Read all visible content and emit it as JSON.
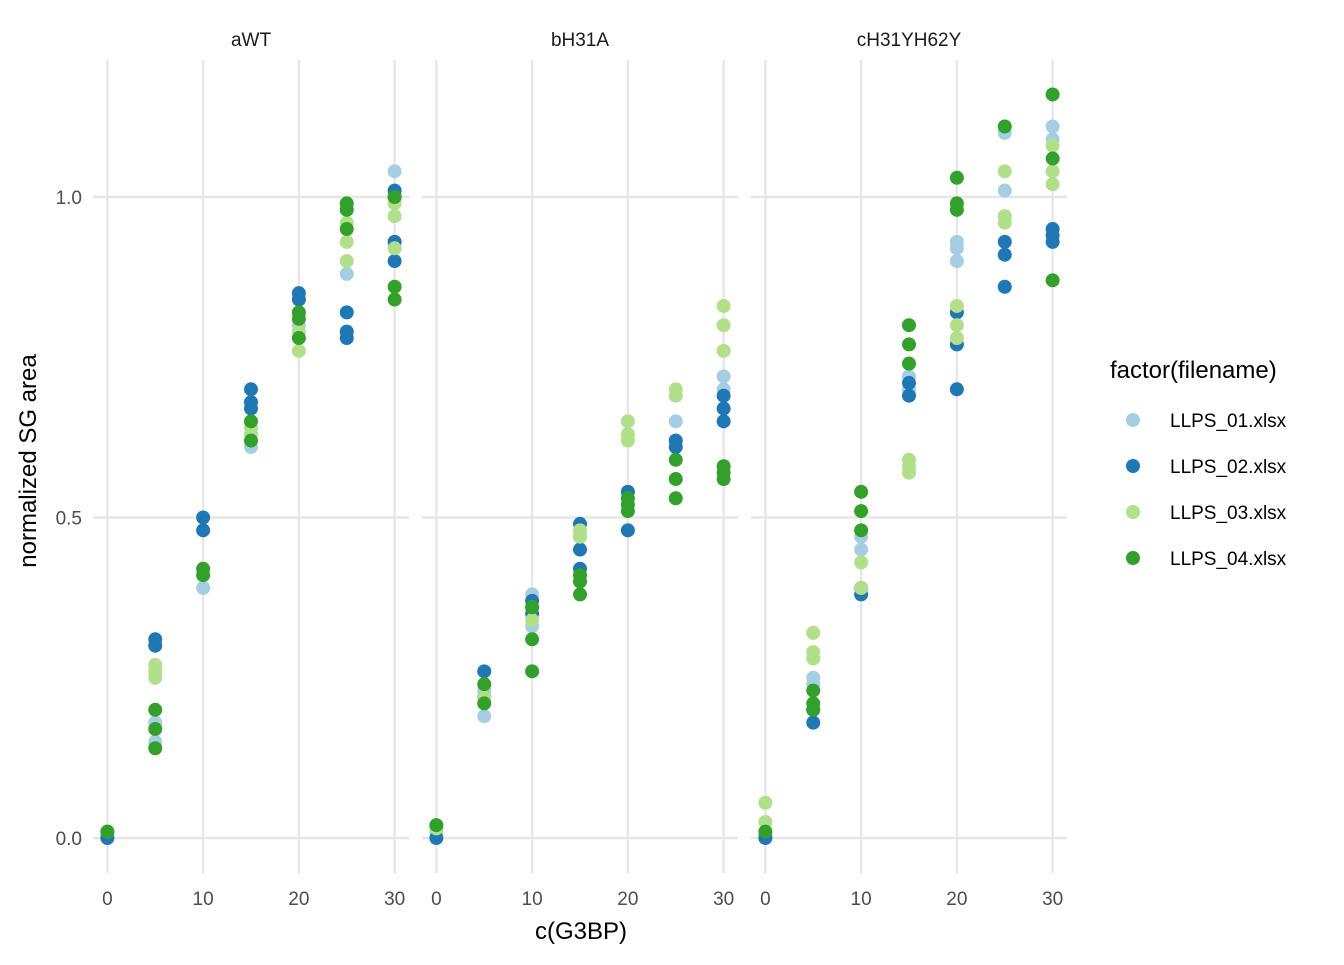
{
  "chart_data": {
    "type": "scatter",
    "facet_variable": "panel",
    "panels": [
      "aWT",
      "bH31A",
      "cH31YH62Y"
    ],
    "xlabel": "c(G3BP)",
    "ylabel": "normalized SG area",
    "xlim": [
      -1.5,
      31.5
    ],
    "ylim": [
      -0.05,
      1.22
    ],
    "x_ticks": [
      0,
      10,
      20,
      30
    ],
    "x_tick_labels": [
      "0",
      "10",
      "20",
      "30"
    ],
    "y_ticks": [
      0.0,
      0.5,
      1.0
    ],
    "y_tick_labels": [
      "0.0",
      "0.5",
      "1.0"
    ],
    "grid": true,
    "legend": {
      "title": "factor(filename)",
      "position": "right"
    },
    "series": [
      {
        "name": "LLPS_01.xlsx",
        "color": "#a6cee3",
        "points": {
          "aWT": [
            [
              0,
              0.005
            ],
            [
              5,
              0.18
            ],
            [
              5,
              0.15
            ],
            [
              10,
              0.39
            ],
            [
              15,
              0.61
            ],
            [
              20,
              0.8
            ],
            [
              20,
              0.84
            ],
            [
              25,
              0.88
            ],
            [
              30,
              1.04
            ],
            [
              30,
              0.93
            ],
            [
              30,
              0.92
            ]
          ],
          "bH31A": [
            [
              0,
              0.01
            ],
            [
              5,
              0.19
            ],
            [
              5,
              0.23
            ],
            [
              10,
              0.33
            ],
            [
              10,
              0.38
            ],
            [
              15,
              0.45
            ],
            [
              15,
              0.47
            ],
            [
              20,
              0.52
            ],
            [
              20,
              0.54
            ],
            [
              25,
              0.65
            ],
            [
              25,
              0.62
            ],
            [
              30,
              0.72
            ],
            [
              30,
              0.7
            ]
          ],
          "cH31YH62Y": [
            [
              0,
              0.005
            ],
            [
              5,
              0.25
            ],
            [
              5,
              0.24
            ],
            [
              10,
              0.45
            ],
            [
              10,
              0.47
            ],
            [
              15,
              0.72
            ],
            [
              15,
              0.7
            ],
            [
              20,
              0.9
            ],
            [
              20,
              0.93
            ],
            [
              20,
              0.92
            ],
            [
              25,
              1.1
            ],
            [
              25,
              1.01
            ],
            [
              25,
              0.97
            ],
            [
              30,
              1.11
            ],
            [
              30,
              1.09
            ]
          ]
        }
      },
      {
        "name": "LLPS_02.xlsx",
        "color": "#1f78b4",
        "points": {
          "aWT": [
            [
              0,
              0.0
            ],
            [
              5,
              0.31
            ],
            [
              5,
              0.3
            ],
            [
              10,
              0.5
            ],
            [
              10,
              0.48
            ],
            [
              15,
              0.7
            ],
            [
              15,
              0.68
            ],
            [
              15,
              0.67
            ],
            [
              20,
              0.85
            ],
            [
              20,
              0.84
            ],
            [
              25,
              0.82
            ],
            [
              25,
              0.79
            ],
            [
              25,
              0.78
            ],
            [
              30,
              1.01
            ],
            [
              30,
              1.0
            ],
            [
              30,
              0.93
            ],
            [
              30,
              0.9
            ]
          ],
          "bH31A": [
            [
              0,
              0.0
            ],
            [
              5,
              0.26
            ],
            [
              5,
              0.22
            ],
            [
              10,
              0.37
            ],
            [
              10,
              0.35
            ],
            [
              15,
              0.49
            ],
            [
              15,
              0.45
            ],
            [
              15,
              0.42
            ],
            [
              20,
              0.54
            ],
            [
              20,
              0.48
            ],
            [
              25,
              0.62
            ],
            [
              25,
              0.61
            ],
            [
              30,
              0.69
            ],
            [
              30,
              0.67
            ],
            [
              30,
              0.65
            ]
          ],
          "cH31YH62Y": [
            [
              0,
              0.0
            ],
            [
              5,
              0.18
            ],
            [
              5,
              0.2
            ],
            [
              10,
              0.39
            ],
            [
              10,
              0.38
            ],
            [
              15,
              0.71
            ],
            [
              15,
              0.69
            ],
            [
              20,
              0.82
            ],
            [
              20,
              0.77
            ],
            [
              20,
              0.7
            ],
            [
              25,
              0.93
            ],
            [
              25,
              0.91
            ],
            [
              25,
              0.86
            ],
            [
              30,
              0.95
            ],
            [
              30,
              0.94
            ],
            [
              30,
              0.93
            ]
          ]
        }
      },
      {
        "name": "LLPS_03.xlsx",
        "color": "#b2df8a",
        "points": {
          "aWT": [
            [
              0,
              0.01
            ],
            [
              5,
              0.27
            ],
            [
              5,
              0.26
            ],
            [
              5,
              0.25
            ],
            [
              10,
              0.42
            ],
            [
              15,
              0.64
            ],
            [
              15,
              0.63
            ],
            [
              20,
              0.79
            ],
            [
              20,
              0.76
            ],
            [
              25,
              0.96
            ],
            [
              25,
              0.93
            ],
            [
              25,
              0.9
            ],
            [
              30,
              0.97
            ],
            [
              30,
              0.92
            ],
            [
              30,
              0.99
            ]
          ],
          "bH31A": [
            [
              0,
              0.015
            ],
            [
              5,
              0.22
            ],
            [
              10,
              0.36
            ],
            [
              10,
              0.34
            ],
            [
              15,
              0.48
            ],
            [
              15,
              0.47
            ],
            [
              20,
              0.65
            ],
            [
              20,
              0.63
            ],
            [
              20,
              0.62
            ],
            [
              25,
              0.7
            ],
            [
              25,
              0.69
            ],
            [
              30,
              0.83
            ],
            [
              30,
              0.8
            ],
            [
              30,
              0.76
            ]
          ],
          "cH31YH62Y": [
            [
              0,
              0.055
            ],
            [
              0,
              0.025
            ],
            [
              5,
              0.32
            ],
            [
              5,
              0.29
            ],
            [
              5,
              0.28
            ],
            [
              10,
              0.43
            ],
            [
              10,
              0.39
            ],
            [
              15,
              0.59
            ],
            [
              15,
              0.58
            ],
            [
              15,
              0.57
            ],
            [
              20,
              0.83
            ],
            [
              20,
              0.8
            ],
            [
              20,
              0.78
            ],
            [
              25,
              1.04
            ],
            [
              25,
              0.97
            ],
            [
              25,
              0.96
            ],
            [
              30,
              1.08
            ],
            [
              30,
              1.04
            ],
            [
              30,
              1.02
            ]
          ]
        }
      },
      {
        "name": "LLPS_04.xlsx",
        "color": "#33a02c",
        "points": {
          "aWT": [
            [
              0,
              0.01
            ],
            [
              5,
              0.2
            ],
            [
              5,
              0.17
            ],
            [
              5,
              0.14
            ],
            [
              10,
              0.42
            ],
            [
              10,
              0.41
            ],
            [
              15,
              0.65
            ],
            [
              15,
              0.62
            ],
            [
              20,
              0.82
            ],
            [
              20,
              0.81
            ],
            [
              20,
              0.78
            ],
            [
              25,
              0.99
            ],
            [
              25,
              0.98
            ],
            [
              25,
              0.95
            ],
            [
              30,
              1.0
            ],
            [
              30,
              0.86
            ],
            [
              30,
              0.84
            ]
          ],
          "bH31A": [
            [
              0,
              0.02
            ],
            [
              5,
              0.24
            ],
            [
              5,
              0.21
            ],
            [
              10,
              0.31
            ],
            [
              10,
              0.26
            ],
            [
              10,
              0.36
            ],
            [
              15,
              0.41
            ],
            [
              15,
              0.4
            ],
            [
              15,
              0.38
            ],
            [
              20,
              0.53
            ],
            [
              20,
              0.52
            ],
            [
              20,
              0.51
            ],
            [
              25,
              0.59
            ],
            [
              25,
              0.56
            ],
            [
              25,
              0.53
            ],
            [
              30,
              0.58
            ],
            [
              30,
              0.57
            ],
            [
              30,
              0.56
            ]
          ],
          "cH31YH62Y": [
            [
              0,
              0.01
            ],
            [
              5,
              0.23
            ],
            [
              5,
              0.21
            ],
            [
              5,
              0.2
            ],
            [
              10,
              0.54
            ],
            [
              10,
              0.51
            ],
            [
              10,
              0.48
            ],
            [
              15,
              0.8
            ],
            [
              15,
              0.77
            ],
            [
              15,
              0.74
            ],
            [
              20,
              1.03
            ],
            [
              20,
              0.99
            ],
            [
              20,
              0.98
            ],
            [
              25,
              1.11
            ],
            [
              30,
              1.16
            ],
            [
              30,
              1.06
            ],
            [
              30,
              0.87
            ]
          ]
        }
      }
    ]
  }
}
